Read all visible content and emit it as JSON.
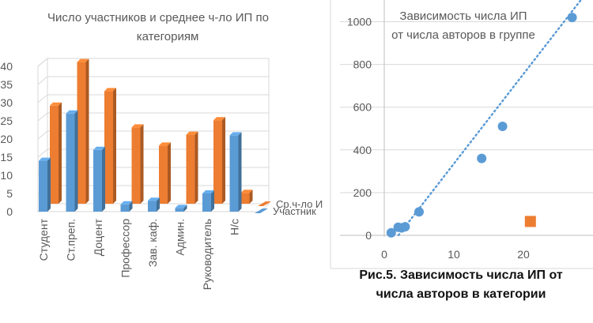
{
  "chart_data": [
    {
      "type": "bar",
      "title_lines": [
        "Число участников и среднее ч-ло ИП по",
        "категориям"
      ],
      "categories": [
        "Студент",
        "Ст.преп.",
        "Доцент",
        "Профессор",
        "Зав. каф.",
        "Админ.",
        "Руководитель",
        "Н/с"
      ],
      "series": [
        {
          "name": "Участник",
          "values": [
            14,
            27,
            17,
            2,
            3,
            1,
            5,
            21
          ],
          "color": "#5b9bd5"
        },
        {
          "name": "Ср.ч-ло ИП",
          "values": [
            27,
            39,
            31,
            21,
            16,
            19,
            23,
            3
          ],
          "color": "#ed7d31"
        }
      ],
      "yticks": [
        0,
        5,
        10,
        15,
        20,
        25,
        30,
        35,
        40
      ],
      "ylim": [
        0,
        40
      ],
      "legend_labels": [
        "Ср.ч-ло И",
        "Участник"
      ],
      "legend_position": "right",
      "style": "3d-clustered"
    },
    {
      "type": "scatter",
      "title_lines": [
        "Зависимость числа ИП",
        "от числа авторов в группе"
      ],
      "series": [
        {
          "marker": "circle",
          "color": "#5b9bd5",
          "points": [
            [
              1,
              12
            ],
            [
              2,
              38
            ],
            [
              2.5,
              35
            ],
            [
              3,
              40
            ],
            [
              5,
              110
            ],
            [
              14,
              360
            ],
            [
              17,
              510
            ],
            [
              27,
              1020
            ]
          ]
        },
        {
          "marker": "square",
          "color": "#ed7d31",
          "points": [
            [
              21,
              65
            ]
          ]
        }
      ],
      "trendline": {
        "style": "dotted",
        "color": "#5b9bd5",
        "slope": 42,
        "intercept": -85
      },
      "xticks": [
        0,
        10,
        20
      ],
      "xlim": [
        0,
        30
      ],
      "yticks": [
        0,
        200,
        400,
        600,
        800,
        1000
      ],
      "ylim": [
        0,
        1000
      ],
      "grid": "horizontal"
    }
  ],
  "caption_lines": [
    "Рис.5. Зависимость числа ИП от",
    "числа авторов в категории"
  ]
}
